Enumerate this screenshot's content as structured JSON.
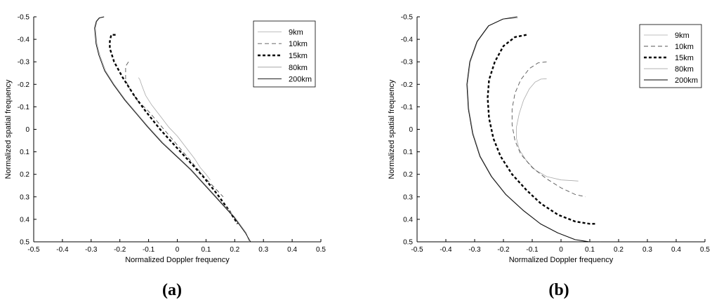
{
  "chart_data": [
    {
      "type": "line",
      "xlabel": "Normalized Doppler frequency",
      "ylabel": "Normalized spatial frequency",
      "xlim": [
        -0.5,
        0.5
      ],
      "ylim": [
        0.5,
        -0.5
      ],
      "y_inverted": true,
      "xticks": [
        "-0.5",
        "-0.4",
        "-0.3",
        "-0.2",
        "-0.1",
        "0",
        "0.1",
        "0.2",
        "0.3",
        "0.4",
        "0.5"
      ],
      "yticks": [
        "-0.5",
        "-0.4",
        "-0.3",
        "-0.2",
        "-0.1",
        "0",
        "0.1",
        "0.2",
        "0.3",
        "0.4",
        "0.5"
      ],
      "legend_position": "top-right",
      "panel_label": "(a)",
      "series": [
        {
          "name": "9km",
          "color": "#aaaaaa",
          "dash": "",
          "width": 0.8,
          "x": [
            -0.135,
            -0.13,
            -0.125,
            -0.11,
            -0.09,
            -0.06,
            -0.03,
            0.0,
            0.03,
            0.06,
            0.08,
            0.1,
            0.115
          ],
          "y": [
            -0.23,
            -0.22,
            -0.2,
            -0.15,
            -0.11,
            -0.06,
            -0.01,
            0.03,
            0.08,
            0.13,
            0.17,
            0.2,
            0.225
          ]
        },
        {
          "name": "10km",
          "color": "#555555",
          "dash": "6,4",
          "width": 0.9,
          "x": [
            -0.17,
            -0.18,
            -0.18,
            -0.17,
            -0.14,
            -0.1,
            -0.06,
            -0.02,
            0.02,
            0.06,
            0.1,
            0.13,
            0.16
          ],
          "y": [
            -0.3,
            -0.28,
            -0.22,
            -0.19,
            -0.13,
            -0.08,
            -0.02,
            0.04,
            0.1,
            0.16,
            0.22,
            0.26,
            0.3
          ]
        },
        {
          "name": "15km",
          "color": "#000000",
          "dash": "4,3",
          "width": 2.4,
          "x": [
            -0.215,
            -0.23,
            -0.235,
            -0.235,
            -0.22,
            -0.19,
            -0.15,
            -0.11,
            -0.06,
            -0.01,
            0.04,
            0.09,
            0.14,
            0.18,
            0.21
          ],
          "y": [
            -0.42,
            -0.42,
            -0.39,
            -0.36,
            -0.3,
            -0.23,
            -0.15,
            -0.08,
            0.0,
            0.07,
            0.14,
            0.21,
            0.29,
            0.36,
            0.42
          ]
        },
        {
          "name": "80km",
          "color": "#9a9a9a",
          "dash": "",
          "width": 0.8,
          "x": [
            -0.26,
            -0.27,
            -0.28,
            -0.285,
            -0.28,
            -0.27,
            -0.25,
            -0.22,
            -0.18,
            -0.14,
            -0.1,
            -0.05,
            0.0,
            0.05,
            0.1,
            0.15,
            0.2,
            0.24,
            0.25
          ],
          "y": [
            -0.498,
            -0.495,
            -0.48,
            -0.45,
            -0.38,
            -0.33,
            -0.26,
            -0.2,
            -0.13,
            -0.07,
            -0.01,
            0.06,
            0.12,
            0.18,
            0.25,
            0.32,
            0.39,
            0.46,
            0.5
          ]
        },
        {
          "name": "200km",
          "color": "#000000",
          "dash": "",
          "width": 0.9,
          "x": [
            -0.255,
            -0.272,
            -0.282,
            -0.288,
            -0.283,
            -0.273,
            -0.253,
            -0.223,
            -0.183,
            -0.143,
            -0.103,
            -0.053,
            -0.003,
            0.047,
            0.097,
            0.147,
            0.197,
            0.237,
            0.255
          ],
          "y": [
            -0.5,
            -0.495,
            -0.48,
            -0.45,
            -0.38,
            -0.33,
            -0.26,
            -0.2,
            -0.13,
            -0.07,
            -0.01,
            0.06,
            0.12,
            0.18,
            0.25,
            0.32,
            0.39,
            0.46,
            0.5
          ]
        }
      ]
    },
    {
      "type": "line",
      "xlabel": "Normalized Doppler frequency",
      "ylabel": "Normalized spatial frequency",
      "xlim": [
        -0.5,
        0.5
      ],
      "ylim": [
        0.5,
        -0.5
      ],
      "y_inverted": true,
      "xticks": [
        "-0.5",
        "-0.4",
        "-0.3",
        "-0.2",
        "-0.1",
        "0",
        "0.1",
        "0.2",
        "0.3",
        "0.4",
        "0.5"
      ],
      "yticks": [
        "-0.5",
        "-0.4",
        "-0.3",
        "-0.2",
        "-0.1",
        "0",
        "0.1",
        "0.2",
        "0.3",
        "0.4",
        "0.5"
      ],
      "legend_position": "top-right",
      "panel_label": "(b)",
      "series": [
        {
          "name": "9km",
          "color": "#aaaaaa",
          "dash": "",
          "width": 0.8,
          "x": [
            -0.05,
            -0.07,
            -0.09,
            -0.11,
            -0.13,
            -0.145,
            -0.155,
            -0.155,
            -0.145,
            -0.12,
            -0.09,
            -0.05,
            0.0,
            0.04,
            0.06
          ],
          "y": [
            -0.225,
            -0.223,
            -0.21,
            -0.18,
            -0.13,
            -0.07,
            -0.01,
            0.04,
            0.09,
            0.14,
            0.18,
            0.21,
            0.225,
            0.228,
            0.23
          ]
        },
        {
          "name": "10km",
          "color": "#555555",
          "dash": "6,4",
          "width": 0.9,
          "x": [
            -0.05,
            -0.08,
            -0.11,
            -0.14,
            -0.16,
            -0.17,
            -0.17,
            -0.16,
            -0.14,
            -0.1,
            -0.05,
            0.0,
            0.05,
            0.085
          ],
          "y": [
            -0.3,
            -0.295,
            -0.27,
            -0.22,
            -0.16,
            -0.09,
            -0.02,
            0.05,
            0.11,
            0.17,
            0.22,
            0.26,
            0.29,
            0.3
          ]
        },
        {
          "name": "15km",
          "color": "#000000",
          "dash": "4,3",
          "width": 2.4,
          "x": [
            -0.12,
            -0.16,
            -0.2,
            -0.23,
            -0.25,
            -0.255,
            -0.25,
            -0.235,
            -0.21,
            -0.17,
            -0.12,
            -0.07,
            -0.01,
            0.05,
            0.1,
            0.12
          ],
          "y": [
            -0.42,
            -0.41,
            -0.37,
            -0.3,
            -0.22,
            -0.14,
            -0.05,
            0.04,
            0.12,
            0.2,
            0.27,
            0.33,
            0.38,
            0.41,
            0.42,
            0.42
          ]
        },
        {
          "name": "80km",
          "color": "#9a9a9a",
          "dash": "",
          "width": 0.8,
          "x": [
            -0.15,
            -0.2,
            -0.25,
            -0.29,
            -0.315,
            -0.325,
            -0.32,
            -0.305,
            -0.28,
            -0.24,
            -0.19,
            -0.13,
            -0.07,
            -0.01,
            0.05,
            0.1,
            0.135
          ],
          "y": [
            -0.495,
            -0.49,
            -0.46,
            -0.39,
            -0.3,
            -0.2,
            -0.09,
            0.02,
            0.12,
            0.21,
            0.29,
            0.36,
            0.42,
            0.46,
            0.49,
            0.5,
            0.5
          ]
        },
        {
          "name": "200km",
          "color": "#000000",
          "dash": "",
          "width": 0.9,
          "x": [
            -0.152,
            -0.202,
            -0.252,
            -0.292,
            -0.317,
            -0.327,
            -0.322,
            -0.307,
            -0.282,
            -0.242,
            -0.192,
            -0.132,
            -0.072,
            -0.012,
            0.048,
            0.098,
            0.135
          ],
          "y": [
            -0.5,
            -0.49,
            -0.46,
            -0.39,
            -0.3,
            -0.2,
            -0.09,
            0.02,
            0.12,
            0.21,
            0.29,
            0.36,
            0.42,
            0.46,
            0.49,
            0.5,
            0.5
          ]
        }
      ]
    }
  ]
}
